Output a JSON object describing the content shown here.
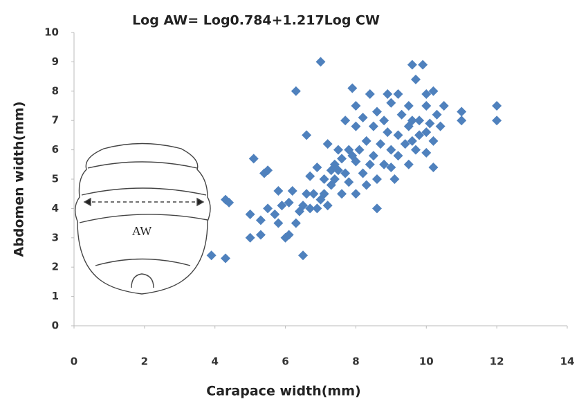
{
  "chart_data": {
    "type": "scatter",
    "title": "Log AW= Log0.784+1.217Log CW",
    "x_label": "Carapace width(mm)",
    "y_label": "Abdomen width(mm)",
    "annotation": "AW",
    "color": "#4f81bd",
    "xlim": [
      0,
      14
    ],
    "xticks": [
      0,
      2,
      4,
      6,
      8,
      10,
      12,
      14
    ],
    "ylim": [
      0,
      10
    ],
    "yticks": [
      0,
      1,
      2,
      3,
      4,
      5,
      6,
      7,
      8,
      9,
      10
    ],
    "x": [
      3.9,
      4.3,
      4.3,
      4.4,
      5.0,
      5.0,
      5.1,
      5.3,
      5.3,
      5.4,
      5.5,
      5.5,
      5.7,
      5.8,
      5.8,
      5.9,
      6.0,
      6.1,
      6.1,
      6.2,
      6.3,
      6.3,
      6.4,
      6.5,
      6.5,
      6.6,
      6.6,
      6.7,
      6.7,
      6.8,
      6.9,
      6.9,
      7.0,
      7.0,
      7.1,
      7.1,
      7.2,
      7.2,
      7.3,
      7.3,
      7.4,
      7.4,
      7.5,
      7.5,
      7.6,
      7.6,
      7.7,
      7.7,
      7.8,
      7.8,
      7.9,
      7.9,
      8.0,
      8.0,
      8.0,
      8.0,
      8.1,
      8.2,
      8.2,
      8.3,
      8.3,
      8.4,
      8.4,
      8.5,
      8.5,
      8.6,
      8.6,
      8.6,
      8.7,
      8.8,
      8.8,
      8.9,
      8.9,
      9.0,
      9.0,
      9.0,
      9.1,
      9.2,
      9.2,
      9.2,
      9.3,
      9.4,
      9.5,
      9.5,
      9.5,
      9.6,
      9.6,
      9.6,
      9.7,
      9.7,
      9.8,
      9.8,
      9.9,
      10.0,
      10.0,
      10.0,
      10.0,
      10.1,
      10.2,
      10.2,
      10.2,
      10.3,
      10.4,
      10.5,
      11.0,
      11.0,
      12.0,
      12.0
    ],
    "values": [
      2.4,
      2.3,
      4.3,
      4.2,
      3.8,
      3.0,
      5.7,
      3.1,
      3.6,
      5.2,
      5.3,
      4.0,
      3.8,
      3.5,
      4.6,
      4.1,
      3.0,
      3.1,
      4.2,
      4.6,
      3.5,
      8.0,
      3.9,
      2.4,
      4.1,
      6.5,
      4.5,
      4.0,
      5.1,
      4.5,
      5.4,
      4.0,
      9.0,
      4.3,
      4.5,
      5.0,
      4.1,
      6.2,
      5.3,
      4.8,
      5.5,
      5.0,
      5.3,
      6.0,
      4.5,
      5.7,
      7.0,
      5.2,
      6.0,
      4.9,
      5.8,
      8.1,
      7.5,
      6.8,
      5.6,
      4.5,
      6.0,
      5.2,
      7.1,
      6.3,
      4.8,
      7.9,
      5.5,
      6.8,
      5.8,
      7.3,
      5.0,
      4.0,
      6.2,
      7.0,
      5.5,
      7.9,
      6.6,
      7.6,
      6.0,
      5.4,
      5.0,
      7.9,
      6.5,
      5.8,
      7.2,
      6.2,
      7.5,
      6.8,
      5.5,
      8.9,
      7.0,
      6.3,
      8.4,
      6.0,
      7.0,
      6.5,
      8.9,
      7.5,
      6.6,
      5.9,
      7.9,
      6.9,
      6.3,
      8.0,
      5.4,
      7.2,
      6.8,
      7.5,
      7.3,
      7.0,
      7.5,
      7.0
    ]
  }
}
